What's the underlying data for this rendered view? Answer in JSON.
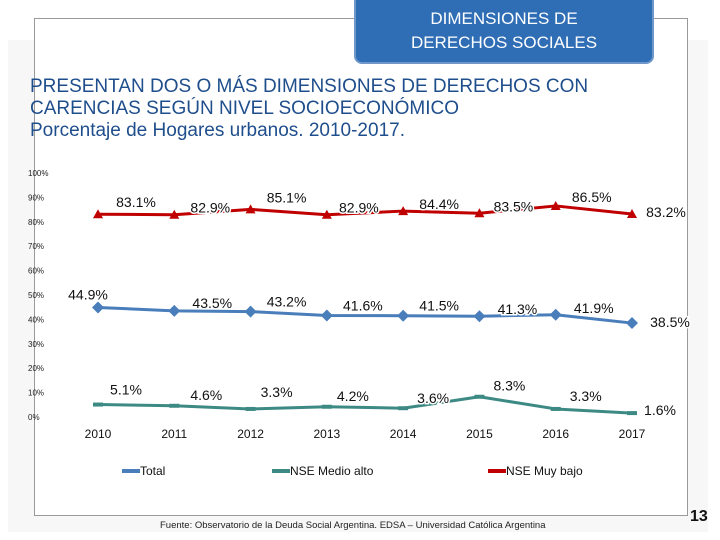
{
  "header": {
    "line1": "DIMENSIONES DE",
    "line2": "DERECHOS SOCIALES"
  },
  "title": {
    "line1": "PRESENTAN DOS O MÁS DIMENSIONES DE DERECHOS CON",
    "line2": "CARENCIAS SEGÚN NIVEL SOCIOECONÓMICO",
    "line3": "Porcentaje de Hogares urbanos. 2010-2017."
  },
  "source": "Fuente: Observatorio de la Deuda Social Argentina. EDSA – Universidad Católica Argentina",
  "page_number": "13",
  "chart_data": {
    "type": "line",
    "categories": [
      "2010",
      "2011",
      "2012",
      "2013",
      "2014",
      "2015",
      "2016",
      "2017"
    ],
    "ylim": [
      0,
      100
    ],
    "yticks": [
      "0%",
      "10%",
      "20%",
      "30%",
      "40%",
      "50%",
      "60%",
      "70%",
      "80%",
      "90%",
      "100%"
    ],
    "legend_position": "bottom",
    "series": [
      {
        "name": "Total",
        "color": "#4a7ebb",
        "values": [
          44.9,
          43.5,
          43.2,
          41.6,
          41.5,
          41.3,
          41.9,
          38.5
        ],
        "labels": [
          "44.9%",
          "43.5%",
          "43.2%",
          "41.6%",
          "41.5%",
          "41.3%",
          "41.9%",
          "38.5%"
        ]
      },
      {
        "name": "NSE Medio alto",
        "color": "#3d8a84",
        "values": [
          5.1,
          4.6,
          3.3,
          4.2,
          3.6,
          8.3,
          3.3,
          1.6
        ],
        "labels": [
          "5.1%",
          "4.6%",
          "3.3%",
          "4.2%",
          "3.6%",
          "8.3%",
          "3.3%",
          "1.6%"
        ]
      },
      {
        "name": "NSE Muy bajo",
        "color": "#c00000",
        "values": [
          83.1,
          82.9,
          85.1,
          82.9,
          84.4,
          83.5,
          86.5,
          83.2
        ],
        "labels": [
          "83.1%",
          "82.9%",
          "85.1%",
          "82.9%",
          "84.4%",
          "83.5%",
          "86.5%",
          "83.2%"
        ]
      }
    ]
  }
}
